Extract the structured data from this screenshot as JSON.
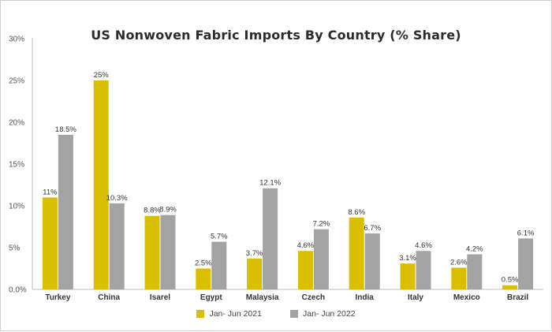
{
  "chart_data": {
    "type": "bar",
    "title": "US Nonwoven Fabric Imports By Country (% Share)",
    "categories": [
      "Turkey",
      "China",
      "Isarel",
      "Egypt",
      "Malaysia",
      "Czech",
      "India",
      "Italy",
      "Mexico",
      "Brazil"
    ],
    "series": [
      {
        "name": "Jan- Jun 2021",
        "color": "#d9bf00",
        "values": [
          11,
          25,
          8.8,
          2.5,
          3.7,
          4.6,
          8.6,
          3.1,
          2.6,
          0.5
        ],
        "labels": [
          "11%",
          "25%",
          "8.8%",
          "2.5%",
          "3.7%",
          "4.6%",
          "8.6%",
          "3.1%",
          "2.6%",
          "0.5%"
        ]
      },
      {
        "name": "Jan- Jun 2022",
        "color": "#a3a3a3",
        "values": [
          18.5,
          10.3,
          8.9,
          5.7,
          12.1,
          7.2,
          6.7,
          4.6,
          4.2,
          6.1
        ],
        "labels": [
          "18.5%",
          "10.3%",
          "8.9%",
          "5.7%",
          "12.1%",
          "7.2%",
          "6.7%",
          "4.6%",
          "4.2%",
          "6.1%"
        ]
      }
    ],
    "y_ticks": [
      "0.0%",
      "5%",
      "10%",
      "15%",
      "20%",
      "25%",
      "30%"
    ],
    "ylim": [
      0,
      30
    ],
    "legend_position": "bottom",
    "grid": false
  }
}
